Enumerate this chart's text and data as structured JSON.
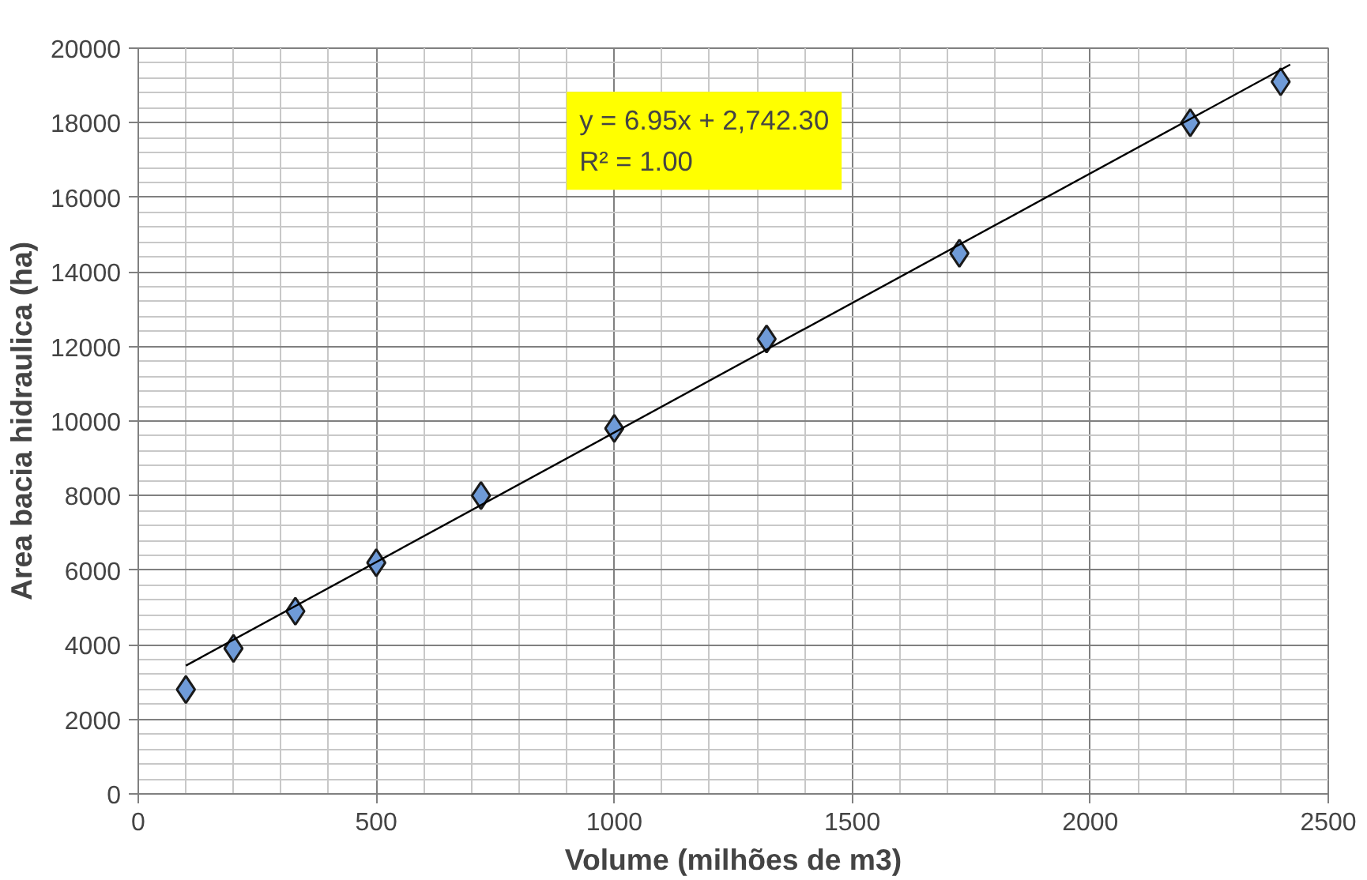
{
  "chart_data": {
    "type": "scatter",
    "xlabel": "Volume (milhões de m3)",
    "ylabel": "Area bacia hidraulica (ha)",
    "annotations": [
      "y = 6.95x + 2,742.30\nR² = 1.00"
    ],
    "series": [
      {
        "color": "#6f9bd8",
        "marker": "diamond",
        "x": [
          100,
          200,
          330,
          500,
          720,
          1000,
          1320,
          1725,
          2210,
          2400
        ],
        "values": [
          2800,
          3900,
          4900,
          6200,
          8000,
          9800,
          12200,
          14500,
          18000,
          19100
        ]
      },
      {
        "type": "line",
        "color": "#000000",
        "x": [
          100,
          2420
        ],
        "values": [
          3440,
          19560
        ]
      }
    ],
    "xlim": [
      0,
      2500
    ],
    "ylim": [
      0,
      20000
    ],
    "xticks": [
      0,
      500,
      1000,
      1500,
      2000,
      2500
    ],
    "yticks": [
      0,
      2000,
      4000,
      6000,
      8000,
      10000,
      12000,
      14000,
      16000,
      18000,
      20000
    ],
    "grid": true
  }
}
